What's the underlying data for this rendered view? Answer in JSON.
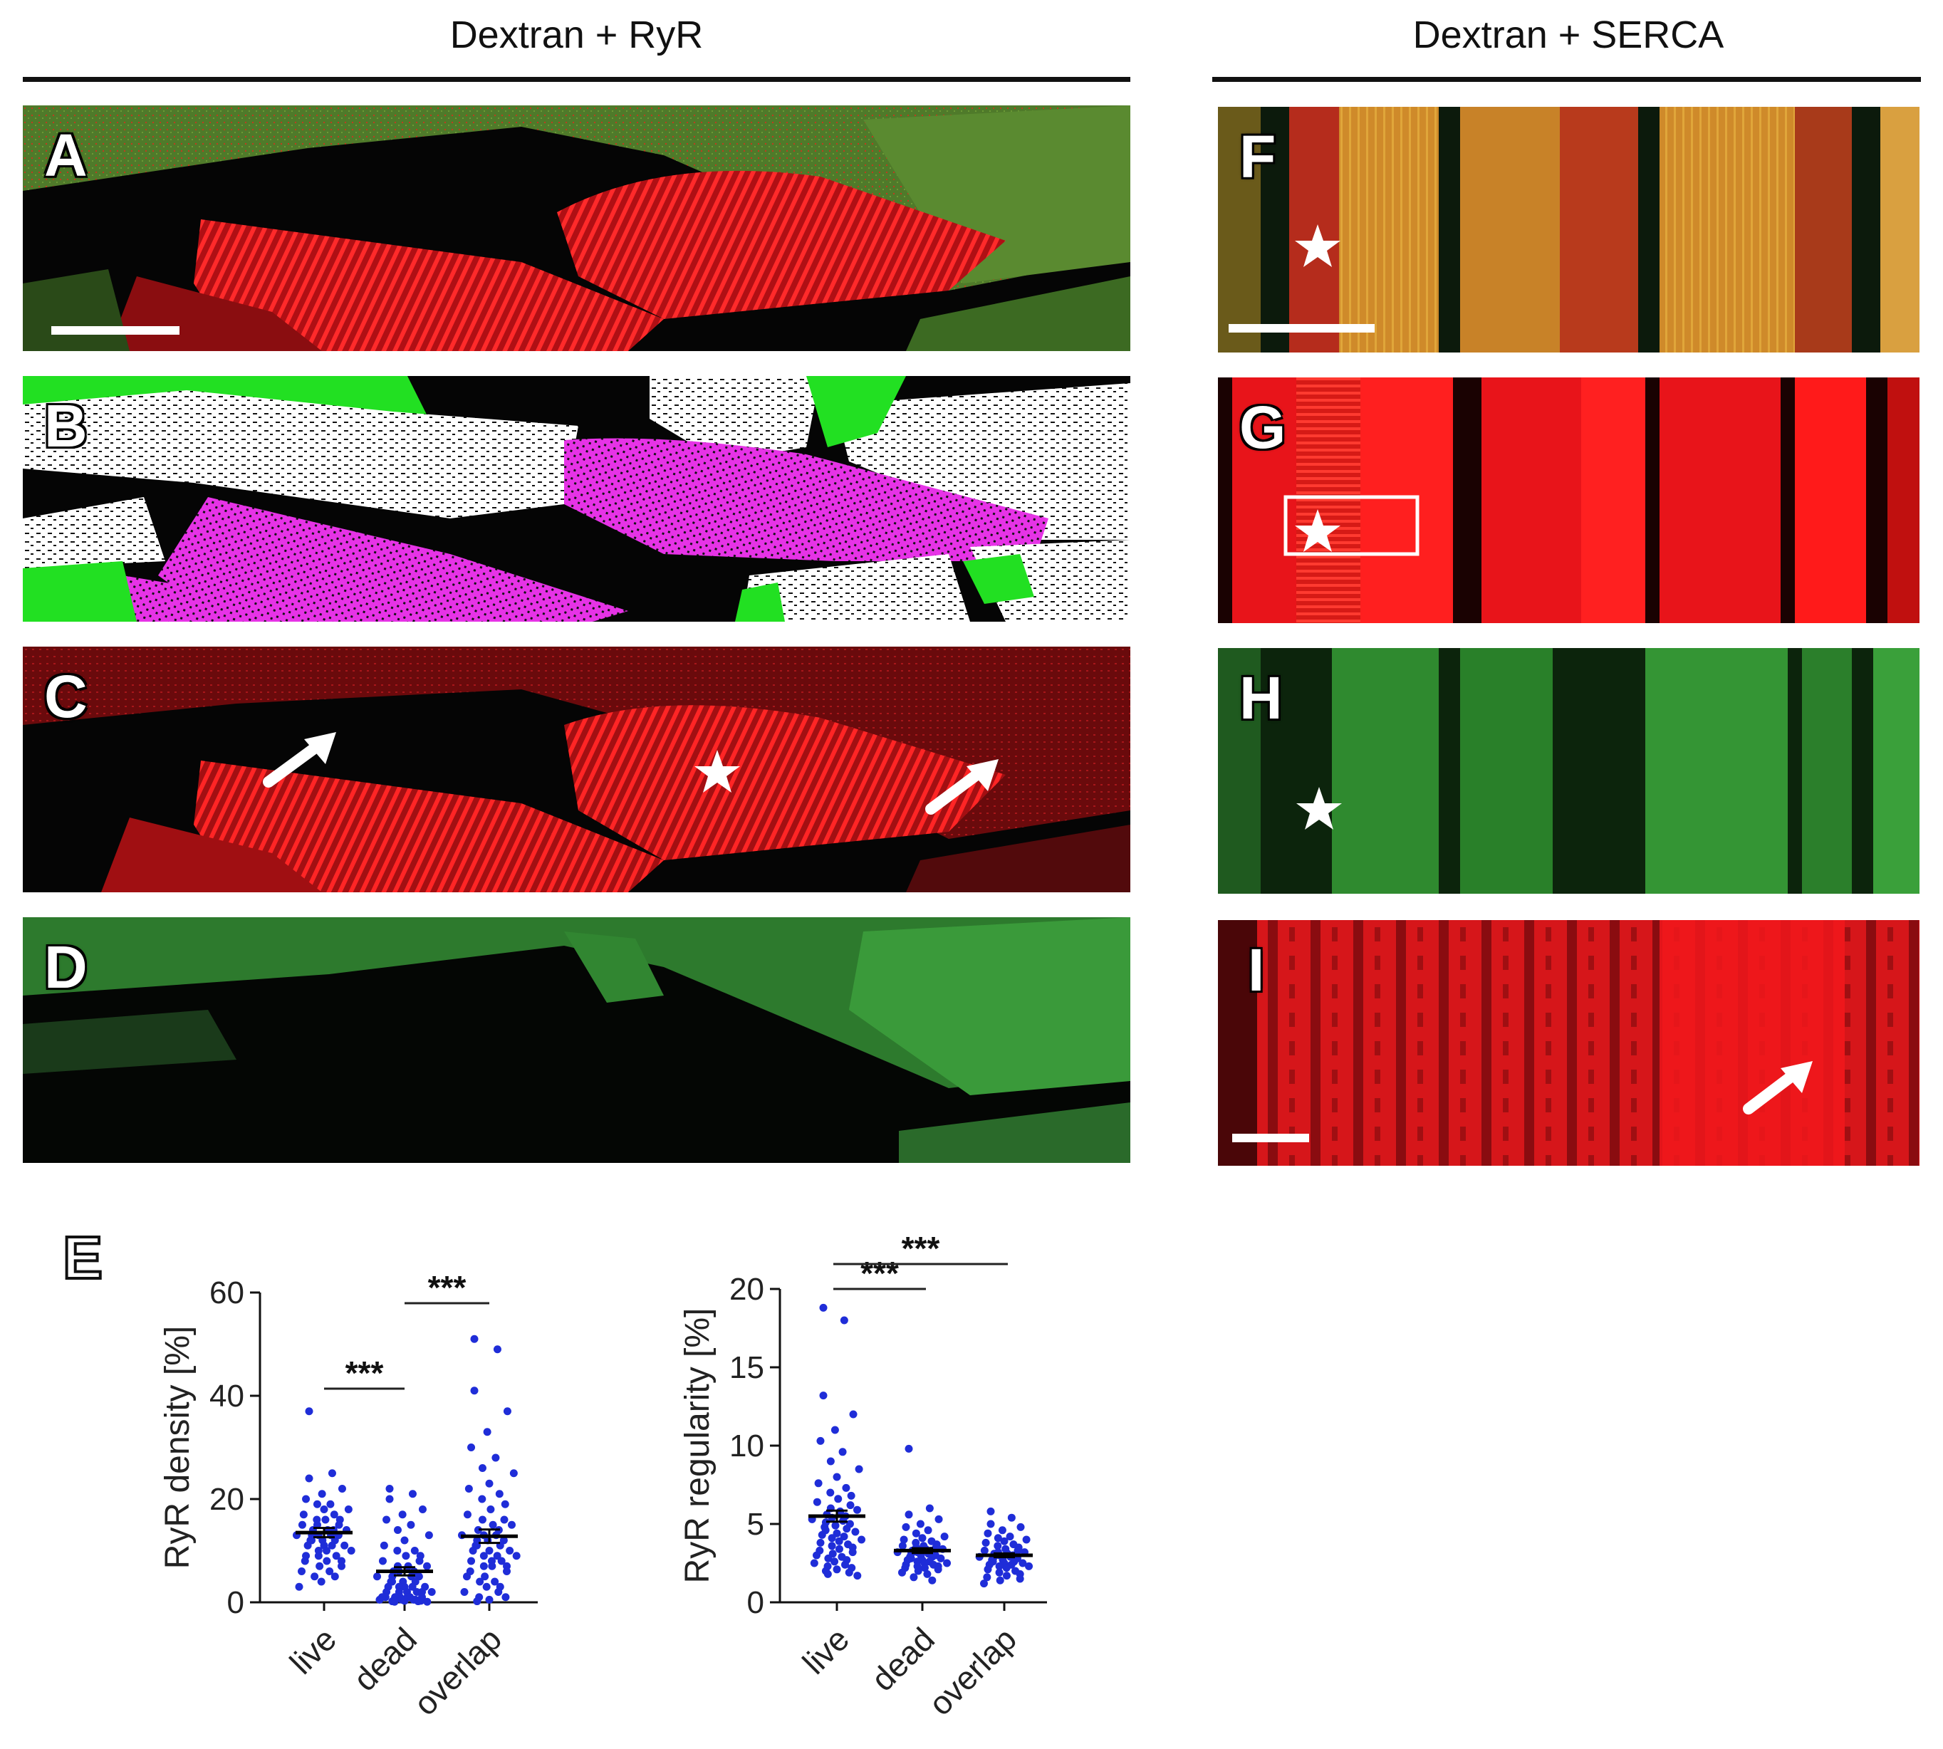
{
  "headers": {
    "left": "Dextran + RyR",
    "right": "Dextran + SERCA"
  },
  "panels": {
    "A": "A",
    "B": "B",
    "C": "C",
    "D": "D",
    "F": "F",
    "G": "G",
    "H": "H",
    "I": "I",
    "E": "E"
  },
  "colors": {
    "ryr_red": "#e8141a",
    "dextran_green": "#2e8b2e",
    "live_white": "#ffffff",
    "dead_magenta": "#e633e6",
    "mask_green": "#22e022",
    "merge_orange": "#d9952a",
    "dots_blue": "#1f2dd8"
  },
  "chart_data": [
    {
      "type": "scatter",
      "ylabel": "RyR density [%]",
      "categories": [
        "live",
        "dead",
        "overlap"
      ],
      "ylim": [
        0,
        60
      ],
      "yticks": [
        0,
        20,
        40,
        60
      ],
      "means": [
        13.5,
        6,
        12.8
      ],
      "sem": [
        0.9,
        0.8,
        1.3
      ],
      "series": [
        {
          "values": [
            37,
            25,
            24,
            22,
            21,
            20,
            19,
            19,
            18,
            18,
            17,
            17,
            16,
            16,
            16,
            15,
            15,
            15,
            14,
            14,
            14,
            14,
            13,
            13,
            13,
            13,
            13,
            12,
            12,
            12,
            12,
            11,
            11,
            11,
            11,
            10,
            10,
            10,
            9,
            9,
            9,
            8,
            8,
            8,
            7,
            7,
            6,
            6,
            5,
            5,
            4,
            3
          ]
        },
        {
          "values": [
            22,
            21,
            20,
            18,
            17,
            16,
            15,
            14,
            13,
            12,
            11,
            10,
            10,
            9,
            9,
            8,
            8,
            7,
            7,
            7,
            6,
            6,
            6,
            5,
            5,
            5,
            5,
            4,
            4,
            4,
            4,
            3,
            3,
            3,
            3,
            3,
            2,
            2,
            2,
            2,
            2,
            2,
            1,
            1,
            1,
            1,
            1,
            1,
            1,
            0.5,
            0.5,
            0.5,
            0.5,
            0.5,
            0.3,
            0.3,
            0.2,
            0.2,
            0.1,
            0.1
          ]
        },
        {
          "values": [
            51,
            49,
            41,
            37,
            33,
            30,
            28,
            26,
            25,
            23,
            22,
            21,
            20,
            19,
            18,
            17,
            16,
            16,
            15,
            15,
            14,
            14,
            13,
            13,
            13,
            12,
            12,
            12,
            11,
            11,
            11,
            10,
            10,
            10,
            9,
            9,
            9,
            8,
            8,
            8,
            7,
            7,
            7,
            6,
            6,
            5,
            5,
            4,
            4,
            3,
            3,
            2,
            2,
            1,
            1,
            0.5,
            0.2
          ]
        }
      ],
      "significance": [
        {
          "from": 0,
          "to": 1,
          "label": "***"
        },
        {
          "from": 1,
          "to": 2,
          "label": "***"
        }
      ]
    },
    {
      "type": "scatter",
      "ylabel": "RyR regularity [%]",
      "categories": [
        "live",
        "dead",
        "overlap"
      ],
      "ylim": [
        0,
        20
      ],
      "yticks": [
        0,
        5,
        10,
        15,
        20
      ],
      "means": [
        5.5,
        3.3,
        3.0
      ],
      "sem": [
        0.35,
        0.15,
        0.12
      ],
      "series": [
        {
          "values": [
            18.8,
            18.0,
            13.2,
            12.0,
            11.0,
            10.3,
            9.6,
            9.0,
            8.5,
            8.0,
            7.6,
            7.3,
            7.0,
            6.8,
            6.6,
            6.4,
            6.2,
            6.0,
            5.9,
            5.8,
            5.6,
            5.5,
            5.4,
            5.3,
            5.2,
            5.1,
            5.0,
            4.9,
            4.8,
            4.7,
            4.6,
            4.5,
            4.4,
            4.3,
            4.2,
            4.1,
            4.0,
            3.9,
            3.8,
            3.7,
            3.6,
            3.5,
            3.4,
            3.3,
            3.2,
            3.1,
            3.0,
            2.9,
            2.8,
            2.7,
            2.6,
            2.5,
            2.4,
            2.3,
            2.2,
            2.1,
            2.0,
            1.9,
            1.8,
            1.7
          ]
        },
        {
          "values": [
            9.8,
            6.0,
            5.6,
            5.3,
            5.0,
            4.8,
            4.6,
            4.4,
            4.2,
            4.1,
            4.0,
            3.9,
            3.8,
            3.7,
            3.6,
            3.6,
            3.5,
            3.5,
            3.4,
            3.4,
            3.3,
            3.3,
            3.2,
            3.2,
            3.1,
            3.1,
            3.0,
            3.0,
            2.9,
            2.9,
            2.8,
            2.8,
            2.7,
            2.7,
            2.6,
            2.6,
            2.5,
            2.5,
            2.4,
            2.4,
            2.3,
            2.3,
            2.2,
            2.2,
            2.1,
            2.0,
            1.9,
            1.8,
            1.6,
            1.4
          ]
        },
        {
          "values": [
            5.8,
            5.4,
            5.0,
            4.8,
            4.6,
            4.4,
            4.2,
            4.1,
            4.0,
            3.9,
            3.8,
            3.7,
            3.6,
            3.5,
            3.4,
            3.3,
            3.3,
            3.2,
            3.2,
            3.1,
            3.1,
            3.0,
            3.0,
            2.9,
            2.9,
            2.8,
            2.8,
            2.7,
            2.7,
            2.6,
            2.6,
            2.5,
            2.5,
            2.4,
            2.4,
            2.3,
            2.3,
            2.2,
            2.1,
            2.0,
            1.9,
            1.8,
            1.7,
            1.6,
            1.5,
            1.4,
            1.2
          ]
        }
      ],
      "significance": [
        {
          "from": 0,
          "to": 1,
          "label": "***"
        },
        {
          "from": 0,
          "to": 2,
          "label": "***"
        }
      ]
    }
  ]
}
